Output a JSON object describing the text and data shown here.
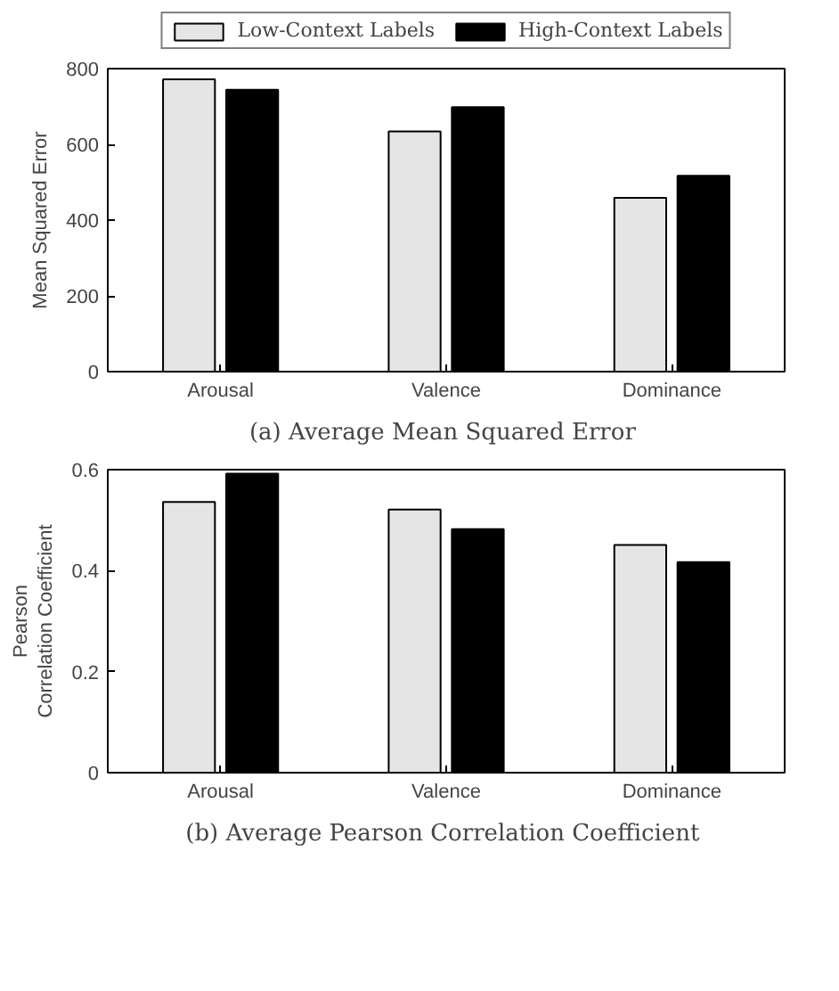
{
  "chart_data": [
    {
      "type": "bar",
      "title": "(a)  Average Mean Squared Error",
      "ylabel": "Mean Squared Error",
      "categories": [
        "Arousal",
        "Valence",
        "Dominance"
      ],
      "series": [
        {
          "name": "Low-Context Labels",
          "color": "#e5e5e5",
          "values": [
            772,
            634,
            459
          ]
        },
        {
          "name": "High-Context Labels",
          "color": "#000000",
          "values": [
            744,
            698,
            517
          ]
        }
      ],
      "ylim": [
        0,
        800
      ],
      "yticks": [
        0,
        200,
        400,
        600,
        800
      ],
      "grid": false,
      "legend": "top"
    },
    {
      "type": "bar",
      "title": "(b)  Average Pearson Correlation Coefficient",
      "ylabel": "Pearson\nCorrelation Coefficient",
      "categories": [
        "Arousal",
        "Valence",
        "Dominance"
      ],
      "series": [
        {
          "color": "#e5e5e5",
          "values": [
            0.536,
            0.521,
            0.451
          ]
        },
        {
          "color": "#000000",
          "values": [
            0.592,
            0.482,
            0.417
          ]
        }
      ],
      "ylim": [
        0,
        0.6
      ],
      "yticks": [
        0,
        0.2,
        0.4,
        0.6
      ],
      "grid": false,
      "legend": false
    }
  ]
}
